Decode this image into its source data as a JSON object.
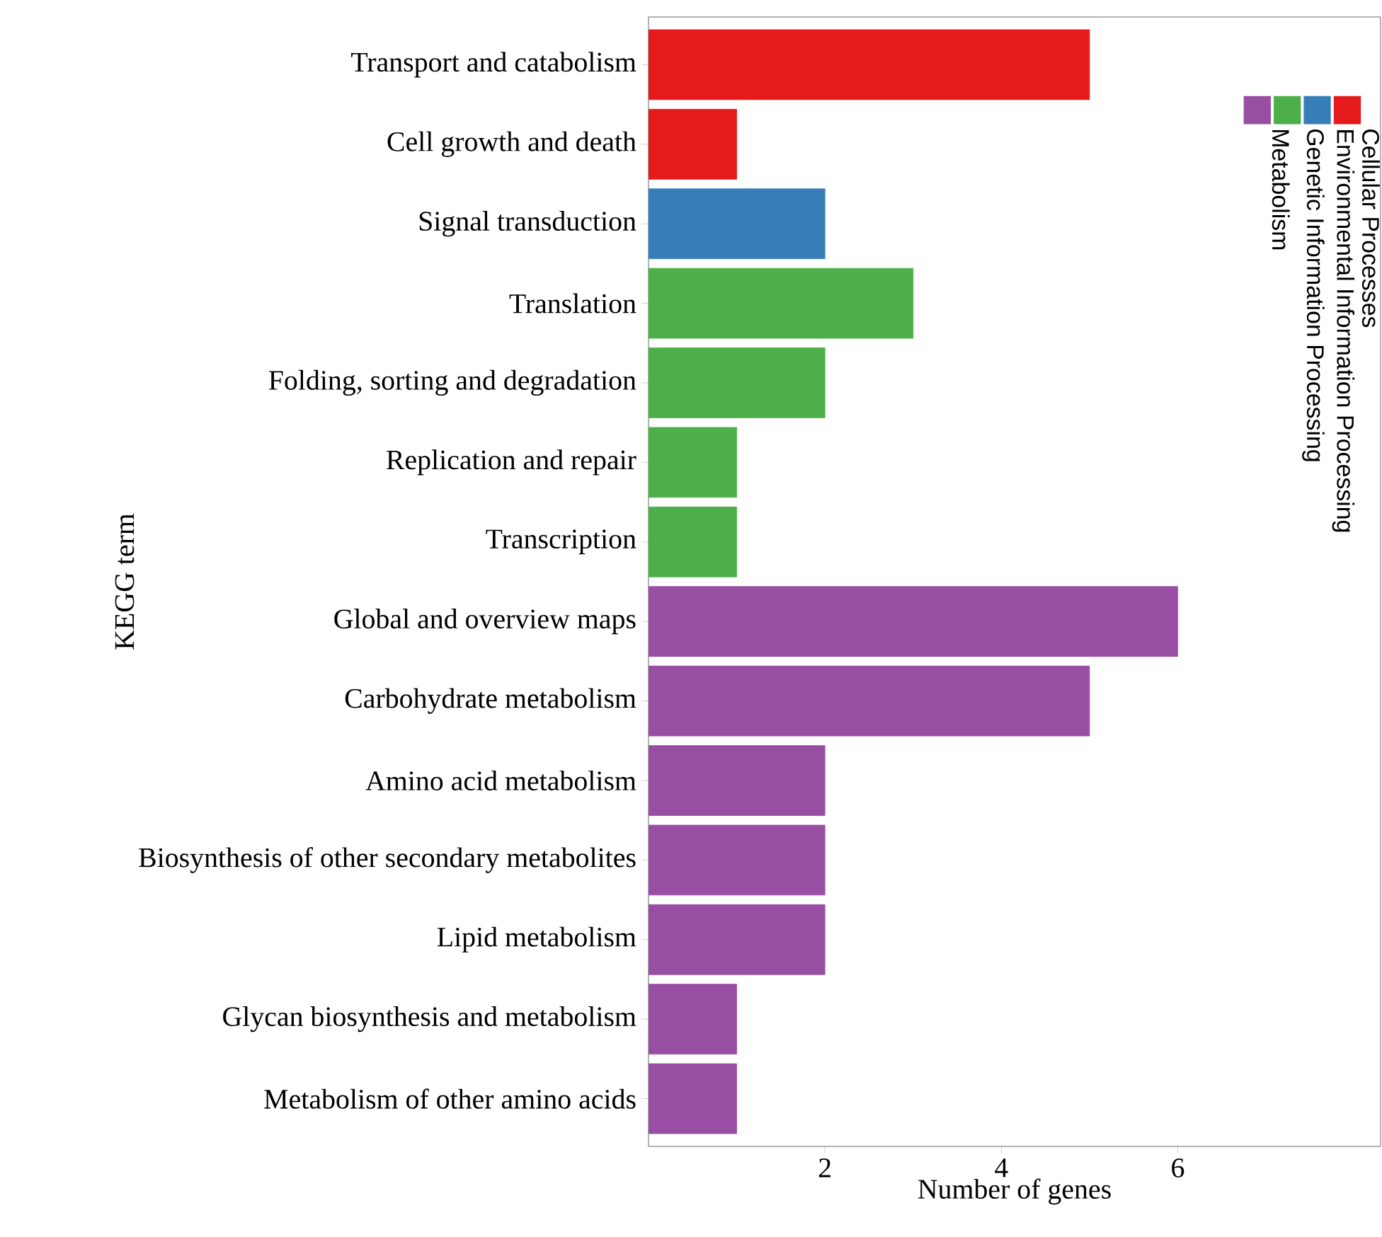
{
  "chart_data": {
    "type": "bar",
    "orientation": "horizontal",
    "xlabel": "Number of genes",
    "ylabel": "KEGG term",
    "categories": [
      "Transport and catabolism",
      "Cell growth and death",
      "Signal transduction",
      "Translation",
      "Folding, sorting and degradation",
      "Replication and repair",
      "Transcription",
      "Global and overview maps",
      "Carbohydrate metabolism",
      "Amino acid metabolism",
      "Biosynthesis of other secondary metabolites",
      "Lipid metabolism",
      "Glycan biosynthesis and metabolism",
      "Metabolism of other amino acids"
    ],
    "series": [
      {
        "name": "Cellular Processes",
        "color": "#e41a1c",
        "values": [
          5,
          1,
          null,
          null,
          null,
          null,
          null,
          null,
          null,
          null,
          null,
          null,
          null,
          null
        ]
      },
      {
        "name": "Environmental Information Processing",
        "color": "#377eb8",
        "values": [
          null,
          null,
          2,
          null,
          null,
          null,
          null,
          null,
          null,
          null,
          null,
          null,
          null,
          null
        ]
      },
      {
        "name": "Genetic Information Processing",
        "color": "#4daf4a",
        "values": [
          null,
          null,
          null,
          3,
          2,
          1,
          1,
          null,
          null,
          null,
          null,
          null,
          null,
          null
        ]
      },
      {
        "name": "Metabolism",
        "color": "#984ea3",
        "values": [
          null,
          null,
          null,
          null,
          null,
          null,
          null,
          6,
          5,
          2,
          2,
          2,
          1,
          1
        ]
      }
    ],
    "xlim": [
      0,
      8.3
    ],
    "xticks": [
      2,
      4,
      6
    ],
    "legend": "top right",
    "grid": false
  }
}
